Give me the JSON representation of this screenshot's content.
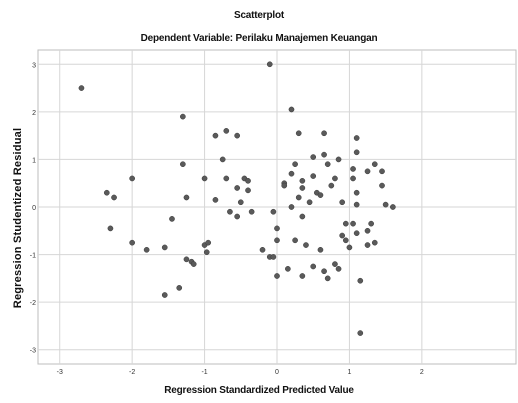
{
  "chart_data": {
    "type": "scatter",
    "title": "Scatterplot",
    "subtitle": "Dependent Variable: Perilaku Manajemen Keuangan",
    "xlabel": "Regression Standardized Predicted Value",
    "ylabel": "Regression Studentized Residual",
    "xlim": [
      -3.3,
      3.3
    ],
    "ylim": [
      -3.3,
      3.3
    ],
    "xticks": [
      -3,
      -2,
      -1,
      0,
      1,
      2
    ],
    "yticks": [
      3,
      2,
      1,
      0,
      -1,
      -2,
      -3
    ],
    "grid": true,
    "marker_color": "#5a5a5a",
    "points": [
      {
        "x": -2.7,
        "y": 2.5
      },
      {
        "x": -2.35,
        "y": 0.3
      },
      {
        "x": -2.25,
        "y": 0.2
      },
      {
        "x": -2.3,
        "y": -0.45
      },
      {
        "x": -2.0,
        "y": 0.6
      },
      {
        "x": -2.0,
        "y": -0.75
      },
      {
        "x": -1.8,
        "y": -0.9
      },
      {
        "x": -1.55,
        "y": -0.85
      },
      {
        "x": -1.55,
        "y": -1.85
      },
      {
        "x": -1.45,
        "y": -0.25
      },
      {
        "x": -1.35,
        "y": -1.7
      },
      {
        "x": -1.3,
        "y": 1.9
      },
      {
        "x": -1.3,
        "y": 0.9
      },
      {
        "x": -1.25,
        "y": 0.2
      },
      {
        "x": -1.25,
        "y": -1.1
      },
      {
        "x": -1.18,
        "y": -1.15
      },
      {
        "x": -1.15,
        "y": -1.2
      },
      {
        "x": -1.0,
        "y": 0.6
      },
      {
        "x": -1.0,
        "y": -0.8
      },
      {
        "x": -0.95,
        "y": -0.75
      },
      {
        "x": -0.97,
        "y": -0.95
      },
      {
        "x": -0.85,
        "y": 1.5
      },
      {
        "x": -0.85,
        "y": 0.15
      },
      {
        "x": -0.75,
        "y": 1.0
      },
      {
        "x": -0.7,
        "y": 1.6
      },
      {
        "x": -0.7,
        "y": 0.6
      },
      {
        "x": -0.65,
        "y": -0.1
      },
      {
        "x": -0.55,
        "y": 1.5
      },
      {
        "x": -0.55,
        "y": 0.4
      },
      {
        "x": -0.55,
        "y": -0.2
      },
      {
        "x": -0.5,
        "y": 0.1
      },
      {
        "x": -0.45,
        "y": 0.6
      },
      {
        "x": -0.4,
        "y": 0.55
      },
      {
        "x": -0.4,
        "y": 0.35
      },
      {
        "x": -0.35,
        "y": -0.1
      },
      {
        "x": -0.2,
        "y": -0.9
      },
      {
        "x": -0.1,
        "y": 3.0
      },
      {
        "x": -0.1,
        "y": -1.05
      },
      {
        "x": -0.05,
        "y": -0.1
      },
      {
        "x": -0.05,
        "y": -1.05
      },
      {
        "x": 0.0,
        "y": -0.45
      },
      {
        "x": 0.0,
        "y": -0.7
      },
      {
        "x": 0.0,
        "y": -1.45
      },
      {
        "x": 0.1,
        "y": 0.5
      },
      {
        "x": 0.1,
        "y": 0.45
      },
      {
        "x": 0.15,
        "y": -1.3
      },
      {
        "x": 0.2,
        "y": 2.05
      },
      {
        "x": 0.2,
        "y": 0.7
      },
      {
        "x": 0.2,
        "y": 0.0
      },
      {
        "x": 0.25,
        "y": 0.9
      },
      {
        "x": 0.25,
        "y": -0.7
      },
      {
        "x": 0.3,
        "y": 1.55
      },
      {
        "x": 0.3,
        "y": 0.2
      },
      {
        "x": 0.35,
        "y": 0.55
      },
      {
        "x": 0.35,
        "y": 0.4
      },
      {
        "x": 0.35,
        "y": -0.2
      },
      {
        "x": 0.35,
        "y": -1.45
      },
      {
        "x": 0.4,
        "y": -0.8
      },
      {
        "x": 0.45,
        "y": 0.1
      },
      {
        "x": 0.5,
        "y": 1.05
      },
      {
        "x": 0.5,
        "y": 0.65
      },
      {
        "x": 0.5,
        "y": -1.25
      },
      {
        "x": 0.55,
        "y": 0.3
      },
      {
        "x": 0.6,
        "y": 0.25
      },
      {
        "x": 0.6,
        "y": -0.9
      },
      {
        "x": 0.65,
        "y": 1.55
      },
      {
        "x": 0.65,
        "y": 1.1
      },
      {
        "x": 0.65,
        "y": -1.35
      },
      {
        "x": 0.7,
        "y": 0.9
      },
      {
        "x": 0.7,
        "y": -1.5
      },
      {
        "x": 0.75,
        "y": 0.45
      },
      {
        "x": 0.8,
        "y": 0.6
      },
      {
        "x": 0.8,
        "y": -1.2
      },
      {
        "x": 0.85,
        "y": 1.0
      },
      {
        "x": 0.85,
        "y": -1.3
      },
      {
        "x": 0.9,
        "y": 0.1
      },
      {
        "x": 0.9,
        "y": -0.6
      },
      {
        "x": 0.95,
        "y": -0.35
      },
      {
        "x": 0.95,
        "y": -0.7
      },
      {
        "x": 1.0,
        "y": -0.85
      },
      {
        "x": 1.05,
        "y": 0.8
      },
      {
        "x": 1.05,
        "y": 0.6
      },
      {
        "x": 1.05,
        "y": -0.35
      },
      {
        "x": 1.1,
        "y": 1.45
      },
      {
        "x": 1.1,
        "y": 1.15
      },
      {
        "x": 1.1,
        "y": 0.3
      },
      {
        "x": 1.1,
        "y": 0.05
      },
      {
        "x": 1.1,
        "y": -0.55
      },
      {
        "x": 1.15,
        "y": -1.55
      },
      {
        "x": 1.15,
        "y": -2.65
      },
      {
        "x": 1.25,
        "y": 0.75
      },
      {
        "x": 1.25,
        "y": -0.5
      },
      {
        "x": 1.25,
        "y": -0.8
      },
      {
        "x": 1.3,
        "y": -0.35
      },
      {
        "x": 1.35,
        "y": 0.9
      },
      {
        "x": 1.35,
        "y": -0.75
      },
      {
        "x": 1.45,
        "y": 0.75
      },
      {
        "x": 1.45,
        "y": 0.45
      },
      {
        "x": 1.5,
        "y": 0.05
      },
      {
        "x": 1.6,
        "y": 0.0
      }
    ]
  }
}
